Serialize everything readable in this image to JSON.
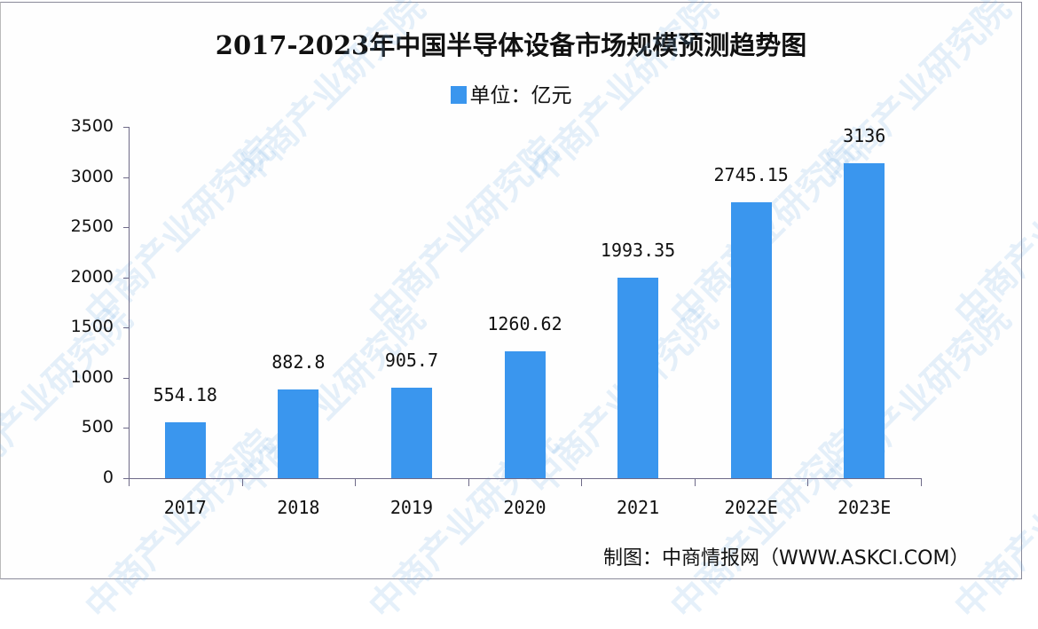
{
  "chart_data": {
    "type": "bar",
    "title": "2017-2023年中国半导体设备市场规模预测趋势图",
    "legend": [
      "单位：亿元"
    ],
    "legend_position": "top",
    "categories": [
      "2017",
      "2018",
      "2019",
      "2020",
      "2021",
      "2022E",
      "2023E"
    ],
    "series": [
      {
        "name": "单位：亿元",
        "values": [
          554.18,
          882.8,
          905.7,
          1260.62,
          1993.35,
          2745.15,
          3136
        ],
        "color": "#3a96ee"
      }
    ],
    "value_labels": [
      "554.18",
      "882.8",
      "905.7",
      "1260.62",
      "1993.35",
      "2745.15",
      "3136"
    ],
    "xlabel": "",
    "ylabel": "",
    "ylim": [
      0,
      3500
    ],
    "yticks": [
      "0",
      "500",
      "1000",
      "1500",
      "2000",
      "2500",
      "3000",
      "3500"
    ],
    "grid": false
  },
  "title": "2017-2023年中国半导体设备市场规模预测趋势图",
  "legend_label": "单位：亿元",
  "source": "制图：中商情报网（WWW.ASKCI.COM）",
  "watermark": "中商产业研究院"
}
